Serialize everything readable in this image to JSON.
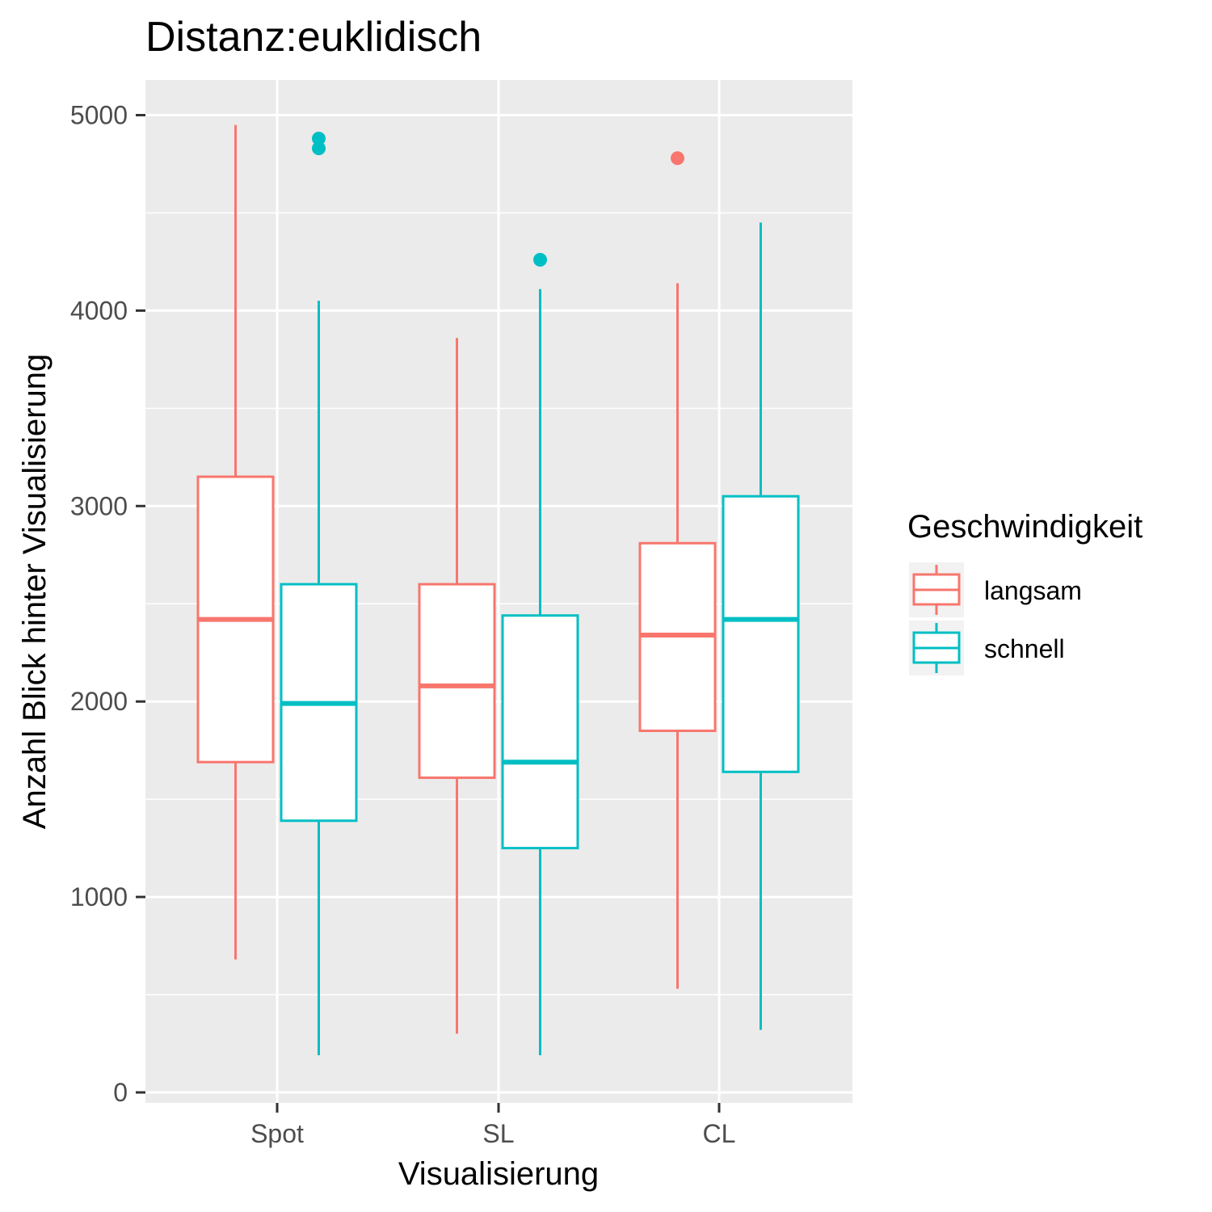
{
  "chart_data": {
    "type": "boxplot",
    "title": "Distanz:euklidisch",
    "xlabel": "Visualisierung",
    "ylabel": "Anzahl Blick hinter Visualisierung",
    "categories": [
      "Spot",
      "SL",
      "CL"
    ],
    "y_ticks": [
      "0",
      "1000",
      "2000",
      "3000",
      "4000",
      "5000"
    ],
    "ylim": [
      -50,
      5180
    ],
    "grid": true,
    "legend": {
      "title": "Geschwindigkeit",
      "position": "right"
    },
    "series": [
      {
        "name": "langsam",
        "color": "#F8766D",
        "boxes": [
          {
            "category": "Spot",
            "whisker_low": 680,
            "q1": 1690,
            "median": 2420,
            "q3": 3150,
            "whisker_high": 4950,
            "outliers": []
          },
          {
            "category": "SL",
            "whisker_low": 300,
            "q1": 1610,
            "median": 2080,
            "q3": 2600,
            "whisker_high": 3860,
            "outliers": []
          },
          {
            "category": "CL",
            "whisker_low": 530,
            "q1": 1850,
            "median": 2340,
            "q3": 2810,
            "whisker_high": 4140,
            "outliers": [
              4780
            ]
          }
        ]
      },
      {
        "name": "schnell",
        "color": "#00BFC4",
        "boxes": [
          {
            "category": "Spot",
            "whisker_low": 190,
            "q1": 1390,
            "median": 1990,
            "q3": 2600,
            "whisker_high": 4050,
            "outliers": [
              4830,
              4880
            ]
          },
          {
            "category": "SL",
            "whisker_low": 190,
            "q1": 1250,
            "median": 1690,
            "q3": 2440,
            "whisker_high": 4110,
            "outliers": [
              4260
            ]
          },
          {
            "category": "CL",
            "whisker_low": 320,
            "q1": 1640,
            "median": 2420,
            "q3": 3050,
            "whisker_high": 4450,
            "outliers": []
          }
        ]
      }
    ]
  }
}
